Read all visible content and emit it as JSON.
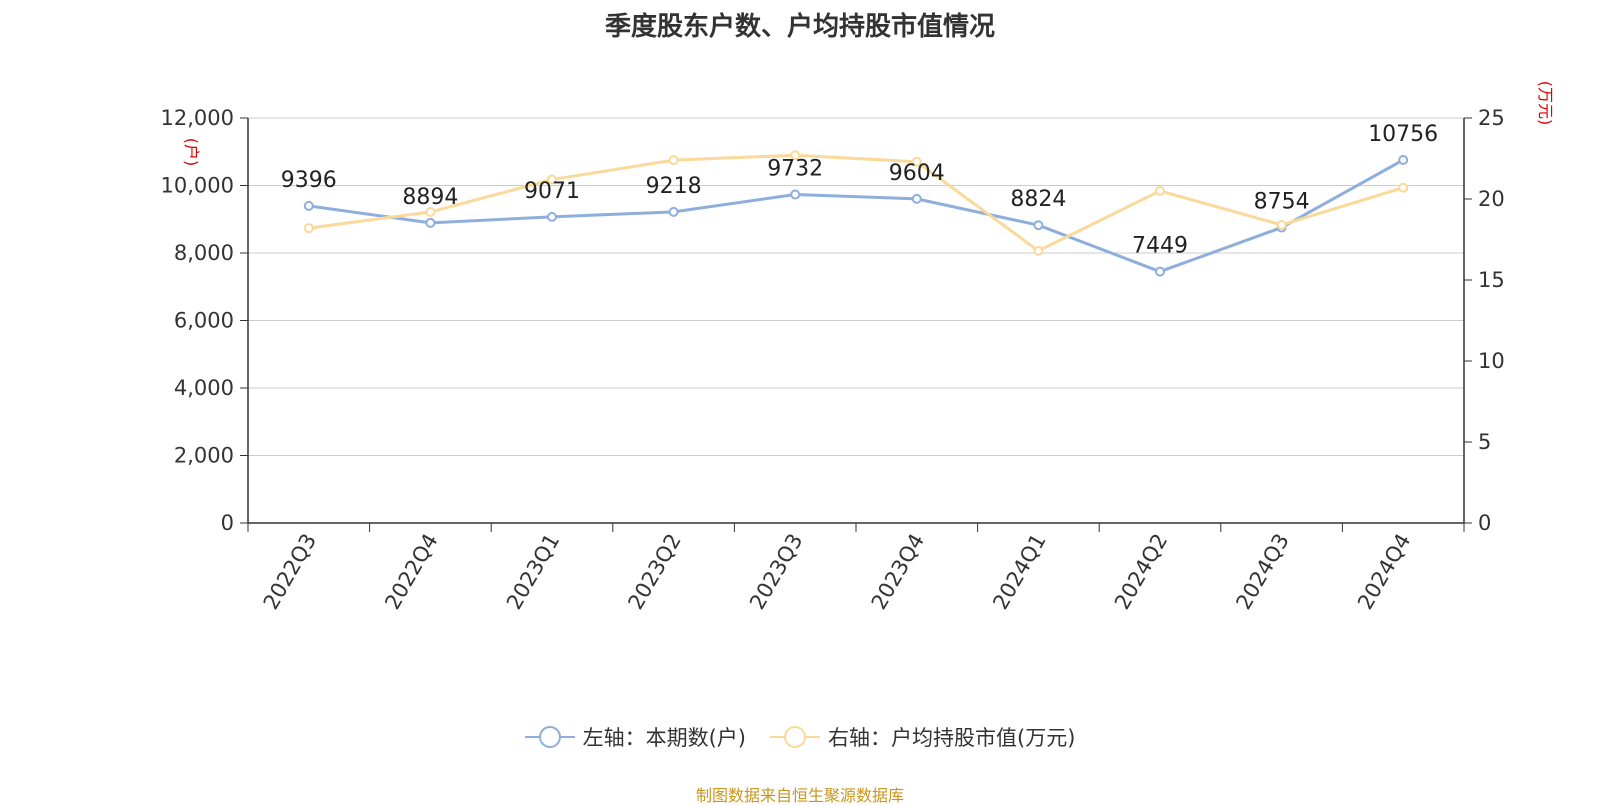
{
  "title": "季度股东户数、户均持股市值情况",
  "source": "制图数据来自恒生聚源数据库",
  "colors": {
    "left_series": "#8eaedb",
    "right_series": "#fbd99a",
    "unit_label": "#e00000",
    "axis": "#333333",
    "grid": "#cccccc"
  },
  "legend": {
    "left": "左轴：本期数(户)",
    "right": "右轴：户均持股市值(万元)"
  },
  "chart_data": {
    "type": "line",
    "categories": [
      "2022Q3",
      "2022Q4",
      "2023Q1",
      "2023Q2",
      "2023Q3",
      "2023Q4",
      "2024Q1",
      "2024Q2",
      "2024Q3",
      "2024Q4"
    ],
    "y_left": {
      "unit": "(户)",
      "min": 0,
      "max": 12000,
      "ticks": [
        0,
        2000,
        4000,
        6000,
        8000,
        10000,
        12000
      ],
      "tick_labels": [
        "0",
        "2,000",
        "4,000",
        "6,000",
        "8,000",
        "10,000",
        "12,000"
      ]
    },
    "y_right": {
      "unit": "(万元)",
      "min": 0,
      "max": 25,
      "ticks": [
        0,
        5,
        10,
        15,
        20,
        25
      ],
      "tick_labels": [
        "0",
        "5",
        "10",
        "15",
        "20",
        "25"
      ]
    },
    "grid": true,
    "legend_position": "bottom",
    "series": [
      {
        "name": "左轴：本期数(户)",
        "axis": "left",
        "values": [
          9396,
          8894,
          9071,
          9218,
          9732,
          9604,
          8824,
          7449,
          8754,
          10756
        ],
        "data_labels": [
          "9396",
          "8894",
          "9071",
          "9218",
          "9732",
          "9604",
          "8824",
          "7449",
          "8754",
          "10756"
        ]
      },
      {
        "name": "右轴：户均持股市值(万元)",
        "axis": "right",
        "values": [
          18.2,
          19.2,
          21.2,
          22.4,
          22.7,
          22.3,
          16.8,
          20.5,
          18.4,
          20.7
        ]
      }
    ]
  }
}
